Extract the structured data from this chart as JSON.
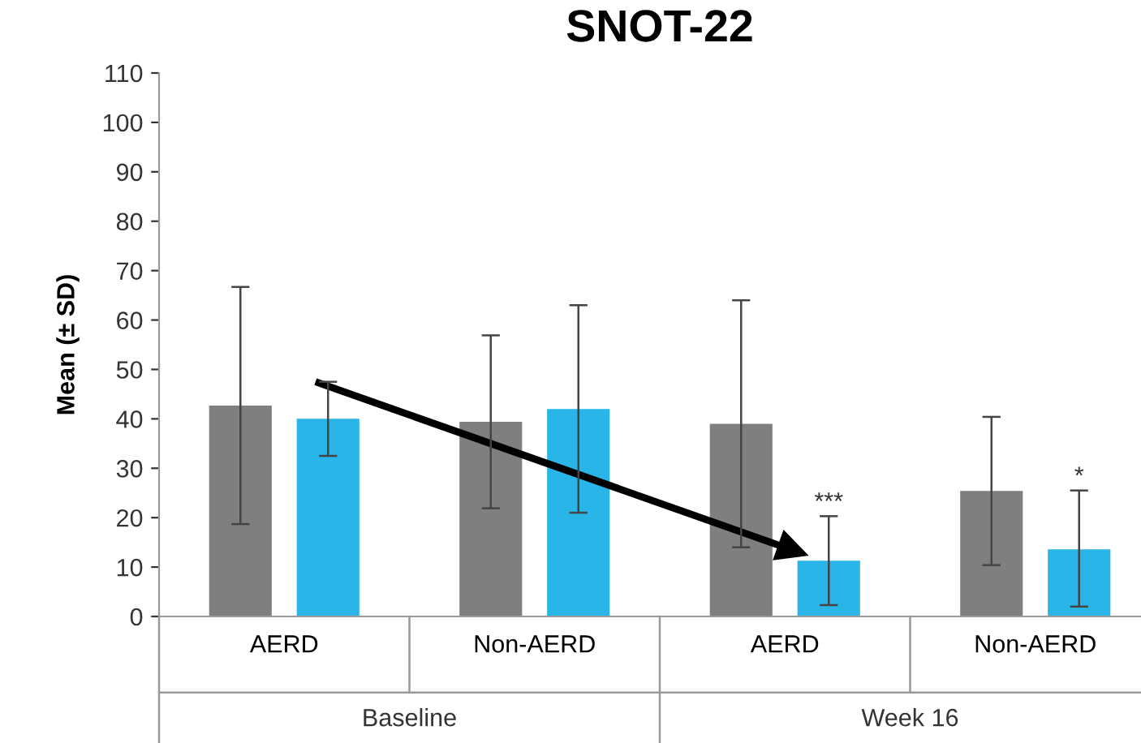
{
  "chart_data": {
    "type": "bar",
    "title": "SNOT-22",
    "ylabel": "Mean (± SD)",
    "categories": [
      "AERD",
      "Non-AERD",
      "AERD",
      "Non-AERD"
    ],
    "series": [
      {
        "color": "#7f7f7f",
        "values": [
          42.7,
          39.4,
          39,
          25.4
        ],
        "errors": [
          24,
          17.5,
          25,
          15
        ]
      },
      {
        "color": "#29b5e8",
        "values": [
          40,
          42,
          11.3,
          13.6
        ],
        "errors": [
          7.5,
          21,
          9,
          [
            11.6,
            11.9
          ]
        ],
        "value_labels": [
          null,
          null,
          "***",
          "*"
        ]
      }
    ],
    "annotations": [
      "Baseline",
      "Week 16"
    ],
    "ylim": [
      0,
      110
    ],
    "yticks": [
      0,
      10,
      20,
      30,
      40,
      50,
      60,
      70,
      80,
      90,
      100,
      110
    ],
    "grid": false
  }
}
